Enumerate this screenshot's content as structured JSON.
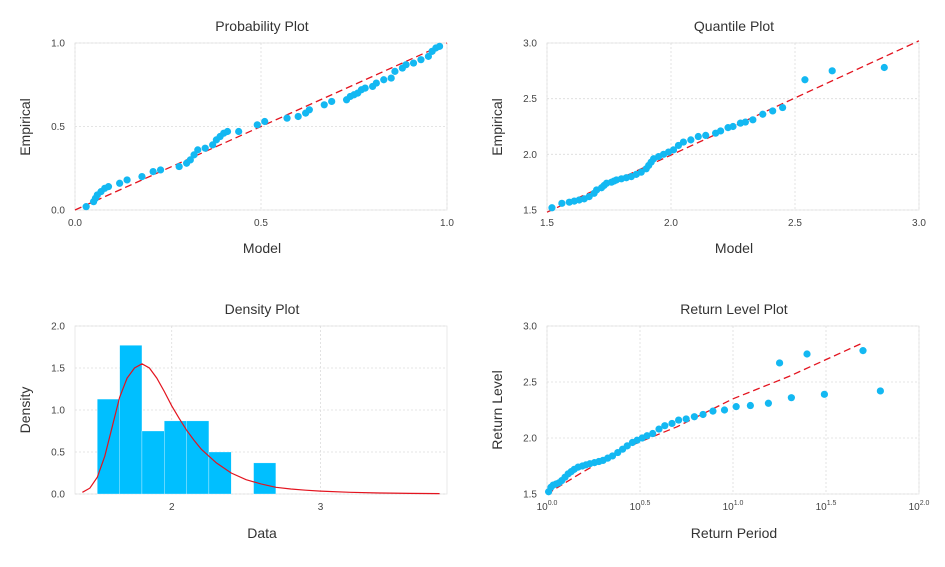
{
  "colors": {
    "points": "#13b8f2",
    "fit": "#e3141f",
    "bars": "#00bfff"
  },
  "chart_data": [
    {
      "type": "scatter",
      "title": "Probability Plot",
      "xlabel": "Model",
      "ylabel": "Empirical",
      "xlim": [
        0,
        1
      ],
      "ylim": [
        0,
        1
      ],
      "xticks": [
        0.0,
        0.5,
        1.0
      ],
      "yticks": [
        0.0,
        0.5,
        1.0
      ],
      "tick_labels_x": [
        "0.0",
        "0.5",
        "1.0"
      ],
      "tick_labels_y": [
        "0.0",
        "0.5",
        "1.0"
      ],
      "grid": true,
      "reference_line": {
        "style": "dashed",
        "x": [
          0,
          1
        ],
        "y": [
          0,
          1
        ]
      },
      "points": [
        [
          0.03,
          0.02
        ],
        [
          0.05,
          0.05
        ],
        [
          0.055,
          0.07
        ],
        [
          0.06,
          0.09
        ],
        [
          0.07,
          0.11
        ],
        [
          0.08,
          0.13
        ],
        [
          0.09,
          0.14
        ],
        [
          0.12,
          0.16
        ],
        [
          0.14,
          0.18
        ],
        [
          0.18,
          0.2
        ],
        [
          0.21,
          0.23
        ],
        [
          0.23,
          0.24
        ],
        [
          0.28,
          0.26
        ],
        [
          0.3,
          0.28
        ],
        [
          0.31,
          0.3
        ],
        [
          0.32,
          0.33
        ],
        [
          0.33,
          0.36
        ],
        [
          0.35,
          0.37
        ],
        [
          0.37,
          0.39
        ],
        [
          0.38,
          0.42
        ],
        [
          0.39,
          0.44
        ],
        [
          0.4,
          0.46
        ],
        [
          0.41,
          0.47
        ],
        [
          0.44,
          0.47
        ],
        [
          0.49,
          0.51
        ],
        [
          0.51,
          0.53
        ],
        [
          0.57,
          0.55
        ],
        [
          0.6,
          0.56
        ],
        [
          0.62,
          0.58
        ],
        [
          0.63,
          0.6
        ],
        [
          0.67,
          0.63
        ],
        [
          0.69,
          0.65
        ],
        [
          0.73,
          0.66
        ],
        [
          0.74,
          0.68
        ],
        [
          0.75,
          0.69
        ],
        [
          0.76,
          0.7
        ],
        [
          0.77,
          0.72
        ],
        [
          0.78,
          0.73
        ],
        [
          0.8,
          0.74
        ],
        [
          0.81,
          0.76
        ],
        [
          0.83,
          0.78
        ],
        [
          0.85,
          0.79
        ],
        [
          0.86,
          0.83
        ],
        [
          0.88,
          0.85
        ],
        [
          0.89,
          0.87
        ],
        [
          0.91,
          0.88
        ],
        [
          0.93,
          0.9
        ],
        [
          0.95,
          0.92
        ],
        [
          0.96,
          0.95
        ],
        [
          0.97,
          0.97
        ],
        [
          0.98,
          0.98
        ]
      ]
    },
    {
      "type": "scatter",
      "title": "Quantile Plot",
      "xlabel": "Model",
      "ylabel": "Empirical",
      "xlim": [
        1.5,
        3.0
      ],
      "ylim": [
        1.5,
        3.0
      ],
      "xticks": [
        1.5,
        2.0,
        2.5,
        3.0
      ],
      "yticks": [
        1.5,
        2.0,
        2.5,
        3.0
      ],
      "tick_labels_x": [
        "1.5",
        "2.0",
        "2.5",
        "3.0"
      ],
      "tick_labels_y": [
        "1.5",
        "2.0",
        "2.5",
        "3.0"
      ],
      "grid": true,
      "reference_line": {
        "style": "dashed",
        "x": [
          1.5,
          3.0
        ],
        "y": [
          1.48,
          3.02
        ]
      },
      "points": [
        [
          1.52,
          1.52
        ],
        [
          1.56,
          1.56
        ],
        [
          1.59,
          1.57
        ],
        [
          1.61,
          1.58
        ],
        [
          1.63,
          1.59
        ],
        [
          1.65,
          1.6
        ],
        [
          1.67,
          1.62
        ],
        [
          1.69,
          1.65
        ],
        [
          1.7,
          1.68
        ],
        [
          1.72,
          1.7
        ],
        [
          1.73,
          1.72
        ],
        [
          1.74,
          1.74
        ],
        [
          1.76,
          1.75
        ],
        [
          1.77,
          1.76
        ],
        [
          1.78,
          1.77
        ],
        [
          1.8,
          1.78
        ],
        [
          1.82,
          1.79
        ],
        [
          1.84,
          1.8
        ],
        [
          1.86,
          1.82
        ],
        [
          1.88,
          1.84
        ],
        [
          1.9,
          1.87
        ],
        [
          1.91,
          1.9
        ],
        [
          1.92,
          1.93
        ],
        [
          1.93,
          1.96
        ],
        [
          1.95,
          1.98
        ],
        [
          1.97,
          2.0
        ],
        [
          1.99,
          2.02
        ],
        [
          2.01,
          2.04
        ],
        [
          2.03,
          2.08
        ],
        [
          2.05,
          2.11
        ],
        [
          2.08,
          2.13
        ],
        [
          2.11,
          2.16
        ],
        [
          2.14,
          2.17
        ],
        [
          2.18,
          2.19
        ],
        [
          2.2,
          2.21
        ],
        [
          2.23,
          2.24
        ],
        [
          2.25,
          2.25
        ],
        [
          2.28,
          2.28
        ],
        [
          2.3,
          2.29
        ],
        [
          2.33,
          2.31
        ],
        [
          2.37,
          2.36
        ],
        [
          2.41,
          2.39
        ],
        [
          2.45,
          2.42
        ],
        [
          2.54,
          2.67
        ],
        [
          2.65,
          2.75
        ],
        [
          2.86,
          2.78
        ]
      ]
    },
    {
      "type": "bar",
      "title": "Density Plot",
      "xlabel": "Data",
      "ylabel": "Density",
      "xlim": [
        1.35,
        3.85
      ],
      "ylim": [
        0,
        2.0
      ],
      "xticks": [
        2,
        3
      ],
      "yticks": [
        0.0,
        0.5,
        1.0,
        1.5,
        2.0
      ],
      "tick_labels_x": [
        "2",
        "3"
      ],
      "tick_labels_y": [
        "0.0",
        "0.5",
        "1.0",
        "1.5",
        "2.0"
      ],
      "grid": true,
      "bins": [
        {
          "x0": 1.5,
          "x1": 1.65,
          "value": 1.13
        },
        {
          "x0": 1.65,
          "x1": 1.8,
          "value": 1.77
        },
        {
          "x0": 1.8,
          "x1": 1.95,
          "value": 0.75
        },
        {
          "x0": 1.95,
          "x1": 2.1,
          "value": 0.87
        },
        {
          "x0": 2.1,
          "x1": 2.25,
          "value": 0.87
        },
        {
          "x0": 2.25,
          "x1": 2.4,
          "value": 0.5
        },
        {
          "x0": 2.4,
          "x1": 2.55,
          "value": 0.0
        },
        {
          "x0": 2.55,
          "x1": 2.7,
          "value": 0.37
        }
      ],
      "density_curve": [
        [
          1.4,
          0.02
        ],
        [
          1.45,
          0.07
        ],
        [
          1.5,
          0.2
        ],
        [
          1.55,
          0.45
        ],
        [
          1.6,
          0.8
        ],
        [
          1.65,
          1.15
        ],
        [
          1.7,
          1.38
        ],
        [
          1.75,
          1.5
        ],
        [
          1.8,
          1.55
        ],
        [
          1.85,
          1.5
        ],
        [
          1.9,
          1.38
        ],
        [
          1.95,
          1.22
        ],
        [
          2.0,
          1.05
        ],
        [
          2.05,
          0.9
        ],
        [
          2.1,
          0.76
        ],
        [
          2.15,
          0.64
        ],
        [
          2.2,
          0.53
        ],
        [
          2.3,
          0.37
        ],
        [
          2.4,
          0.25
        ],
        [
          2.5,
          0.17
        ],
        [
          2.6,
          0.12
        ],
        [
          2.7,
          0.08
        ],
        [
          2.8,
          0.06
        ],
        [
          2.9,
          0.045
        ],
        [
          3.0,
          0.035
        ],
        [
          3.2,
          0.02
        ],
        [
          3.4,
          0.012
        ],
        [
          3.6,
          0.007
        ],
        [
          3.8,
          0.005
        ]
      ]
    },
    {
      "type": "scatter",
      "title": "Return Level Plot",
      "xlabel": "Return Period",
      "ylabel": "Return Level",
      "xscale": "log10",
      "xlim": [
        1,
        100
      ],
      "ylim": [
        1.5,
        3.0
      ],
      "xticks": [
        1,
        3.1623,
        10,
        31.623,
        100
      ],
      "tick_labels_x": [
        {
          "base": "10",
          "exp": "0.0"
        },
        {
          "base": "10",
          "exp": "0.5"
        },
        {
          "base": "10",
          "exp": "1.0"
        },
        {
          "base": "10",
          "exp": "1.5"
        },
        {
          "base": "10",
          "exp": "2.0"
        }
      ],
      "yticks": [
        1.5,
        2.0,
        2.5,
        3.0
      ],
      "tick_labels_y": [
        "1.5",
        "2.0",
        "2.5",
        "3.0"
      ],
      "grid": true,
      "reference_line": {
        "style": "dashed",
        "x": [
          1,
          1.5,
          2,
          3,
          5,
          10,
          20,
          50
        ],
        "y": [
          1.5,
          1.68,
          1.8,
          1.95,
          2.1,
          2.35,
          2.55,
          2.85
        ]
      },
      "points": [
        [
          1.02,
          1.52
        ],
        [
          1.05,
          1.56
        ],
        [
          1.08,
          1.58
        ],
        [
          1.12,
          1.59
        ],
        [
          1.16,
          1.6
        ],
        [
          1.2,
          1.62
        ],
        [
          1.25,
          1.65
        ],
        [
          1.3,
          1.68
        ],
        [
          1.35,
          1.7
        ],
        [
          1.4,
          1.72
        ],
        [
          1.47,
          1.74
        ],
        [
          1.55,
          1.75
        ],
        [
          1.62,
          1.76
        ],
        [
          1.7,
          1.77
        ],
        [
          1.8,
          1.78
        ],
        [
          1.9,
          1.79
        ],
        [
          2.0,
          1.8
        ],
        [
          2.12,
          1.82
        ],
        [
          2.25,
          1.84
        ],
        [
          2.4,
          1.87
        ],
        [
          2.55,
          1.9
        ],
        [
          2.7,
          1.93
        ],
        [
          2.88,
          1.96
        ],
        [
          3.05,
          1.98
        ],
        [
          3.25,
          2.0
        ],
        [
          3.45,
          2.02
        ],
        [
          3.7,
          2.04
        ],
        [
          4.0,
          2.08
        ],
        [
          4.3,
          2.11
        ],
        [
          4.7,
          2.13
        ],
        [
          5.1,
          2.16
        ],
        [
          5.6,
          2.17
        ],
        [
          6.2,
          2.19
        ],
        [
          6.9,
          2.21
        ],
        [
          7.8,
          2.24
        ],
        [
          9.0,
          2.25
        ],
        [
          10.4,
          2.28
        ],
        [
          12.4,
          2.29
        ],
        [
          15.5,
          2.31
        ],
        [
          20.6,
          2.36
        ],
        [
          31.0,
          2.39
        ],
        [
          62,
          2.42
        ],
        [
          17.8,
          2.67
        ],
        [
          25,
          2.75
        ],
        [
          50,
          2.78
        ]
      ]
    }
  ]
}
